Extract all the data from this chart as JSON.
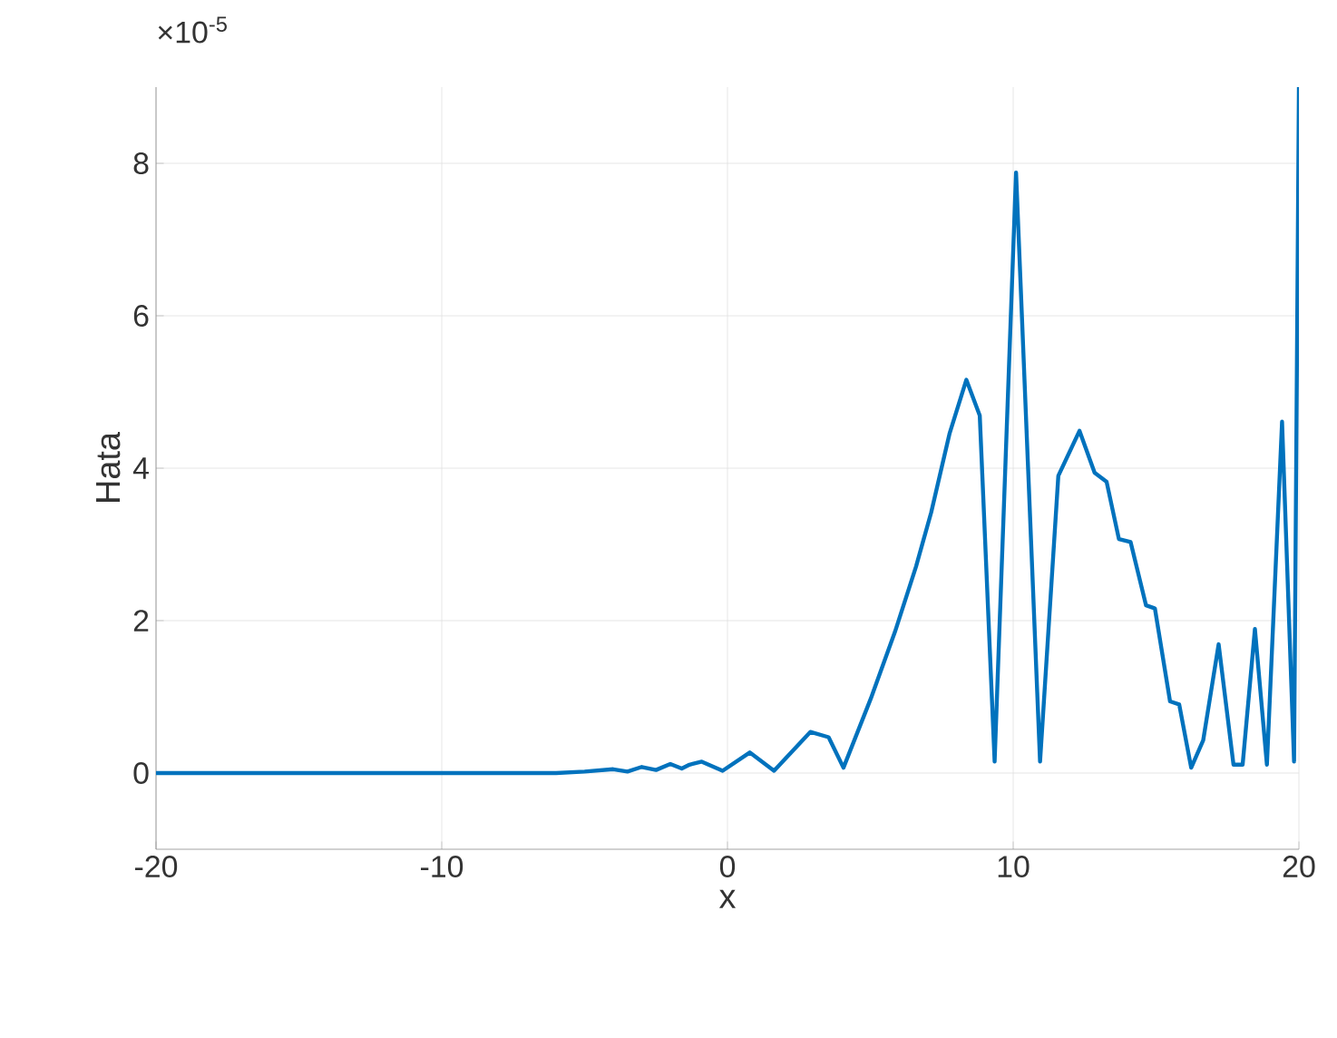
{
  "chart_data": {
    "type": "line",
    "xlabel": "x",
    "ylabel": "Hata",
    "annotations": [
      "×10$^{-5}$"
    ],
    "xlim": [
      -20,
      20
    ],
    "ylim": [
      -1,
      9
    ],
    "xticks": [
      -20,
      -10,
      0,
      10,
      20
    ],
    "yticks": [
      0,
      2,
      4,
      6,
      8
    ],
    "grid": true,
    "line_style": "solid",
    "marker": "none",
    "series": [
      {
        "color": "#0072bd",
        "x": [
          -20,
          -15,
          -10,
          -6,
          -5,
          -4,
          -3.5,
          -3,
          -2.5,
          -2,
          -1.6,
          -1.33,
          -0.9,
          -0.17,
          0.78,
          1.63,
          2.9,
          3.54,
          4.06,
          5.02,
          5.86,
          6.6,
          7.13,
          7.77,
          8.36,
          8.83,
          9.35,
          10.1,
          10.94,
          11.58,
          12.32,
          12.85,
          13.27,
          13.7,
          14.11,
          14.65,
          14.96,
          15.49,
          15.81,
          16.23,
          16.65,
          17.19,
          17.71,
          18.03,
          18.46,
          18.88,
          19.41,
          19.83,
          20
        ],
        "values": [
          0,
          0,
          0,
          0,
          0.02,
          0.05,
          0.02,
          0.08,
          0.04,
          0.12,
          0.06,
          0.11,
          0.15,
          0.03,
          0.27,
          0.03,
          0.54,
          0.47,
          0.07,
          0.98,
          1.85,
          2.71,
          3.42,
          4.45,
          5.16,
          4.69,
          0.15,
          7.88,
          0.15,
          3.9,
          4.49,
          3.94,
          3.82,
          3.07,
          3.03,
          2.2,
          2.16,
          0.94,
          0.9,
          0.07,
          0.43,
          1.69,
          0.11,
          0.11,
          1.89,
          0.11,
          4.61,
          0.15,
          9
        ]
      }
    ]
  }
}
